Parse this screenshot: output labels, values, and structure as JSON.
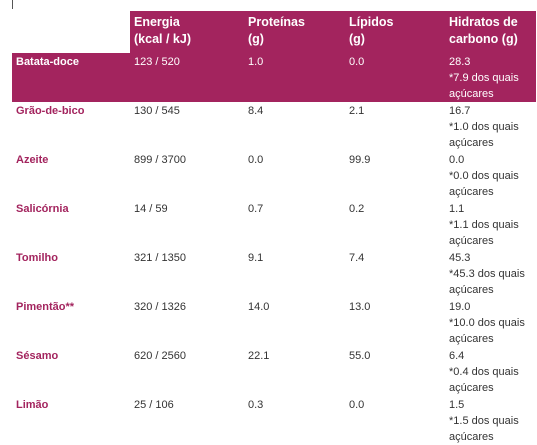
{
  "headers": {
    "energy": [
      "Energia",
      "(kcal / kJ)"
    ],
    "protein": [
      "Proteínas",
      "(g)"
    ],
    "lipids": [
      "Lípidos",
      "(g)"
    ],
    "carbs": [
      "Hidratos de",
      "carbono (g)"
    ]
  },
  "rows": [
    {
      "name": "Batata-doce",
      "energy": "123 / 520",
      "protein": "1.0",
      "lipids": "0.0",
      "carbs": "28.3",
      "sugars": "*7.9 dos quais açúcares"
    },
    {
      "name": "Grão-de-bico",
      "energy": "130 / 545",
      "protein": "8.4",
      "lipids": "2.1",
      "carbs": "16.7",
      "sugars": "*1.0 dos quais açúcares"
    },
    {
      "name": "Azeite",
      "energy": "899 / 3700",
      "protein": "0.0",
      "lipids": "99.9",
      "carbs": "0.0",
      "sugars": "*0.0 dos quais açúcares"
    },
    {
      "name": "Salicórnia",
      "energy": "14 / 59",
      "protein": "0.7",
      "lipids": "0.2",
      "carbs": "1.1",
      "sugars": "*1.1 dos quais açúcares"
    },
    {
      "name": "Tomilho",
      "energy": "321 / 1350",
      "protein": "9.1",
      "lipids": "7.4",
      "carbs": "45.3",
      "sugars": "*45.3 dos quais açúcares"
    },
    {
      "name": "Pimentão**",
      "energy": "320 / 1326",
      "protein": "14.0",
      "lipids": "13.0",
      "carbs": "19.0",
      "sugars": "*10.0 dos quais açúcares"
    },
    {
      "name": "Sésamo",
      "energy": "620 / 2560",
      "protein": "22.1",
      "lipids": "55.0",
      "carbs": "6.4",
      "sugars": "*0.4 dos quais açúcares"
    },
    {
      "name": "Limão",
      "energy": "25 / 106",
      "protein": "0.3",
      "lipids": "0.0",
      "carbs": "1.5",
      "sugars": "*1.5 dos quais açúcares"
    }
  ],
  "colors": {
    "accent": "#a3245e",
    "text": "#333333"
  }
}
